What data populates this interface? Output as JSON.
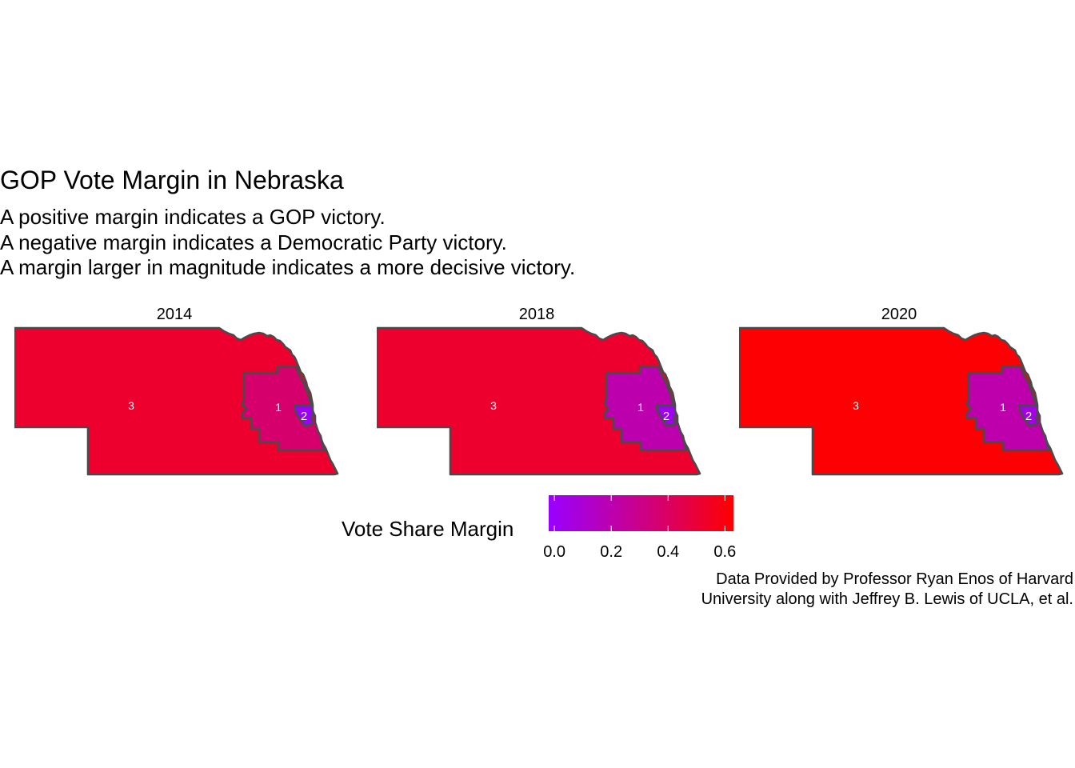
{
  "title": "GOP Vote Margin in Nebraska",
  "subtitle_lines": [
    "A positive margin indicates a GOP victory.",
    "A negative margin indicates a Democratic Party victory.",
    "A margin larger in magnitude indicates a more decisive victory."
  ],
  "caption_lines": [
    "Data Provided by Professor Ryan Enos of Harvard",
    "University along with Jeffrey B. Lewis of UCLA, et al."
  ],
  "legend": {
    "title": "Vote Share Margin",
    "min": -0.02,
    "max": 0.63,
    "color_low": "#9900ff",
    "color_mid": "#cc0088",
    "color_high": "#ff0000",
    "ticks": [
      0.0,
      0.2,
      0.4,
      0.6
    ],
    "tick_labels": [
      "0.0",
      "0.2",
      "0.4",
      "0.6"
    ]
  },
  "border_color": "#4a4a4a",
  "label_color": "#ffffff",
  "chart_data": {
    "type": "choropleth",
    "state": "Nebraska",
    "facets": [
      {
        "year": "2014",
        "districts": [
          {
            "district": "3",
            "margin": 0.52
          },
          {
            "district": "1",
            "margin": 0.37
          },
          {
            "district": "2",
            "margin": -0.01
          }
        ]
      },
      {
        "year": "2018",
        "districts": [
          {
            "district": "3",
            "margin": 0.52
          },
          {
            "district": "1",
            "margin": 0.2
          },
          {
            "district": "2",
            "margin": 0.02
          }
        ]
      },
      {
        "year": "2020",
        "districts": [
          {
            "district": "3",
            "margin": 0.62
          },
          {
            "district": "1",
            "margin": 0.21
          },
          {
            "district": "2",
            "margin": 0.05
          }
        ]
      }
    ]
  }
}
